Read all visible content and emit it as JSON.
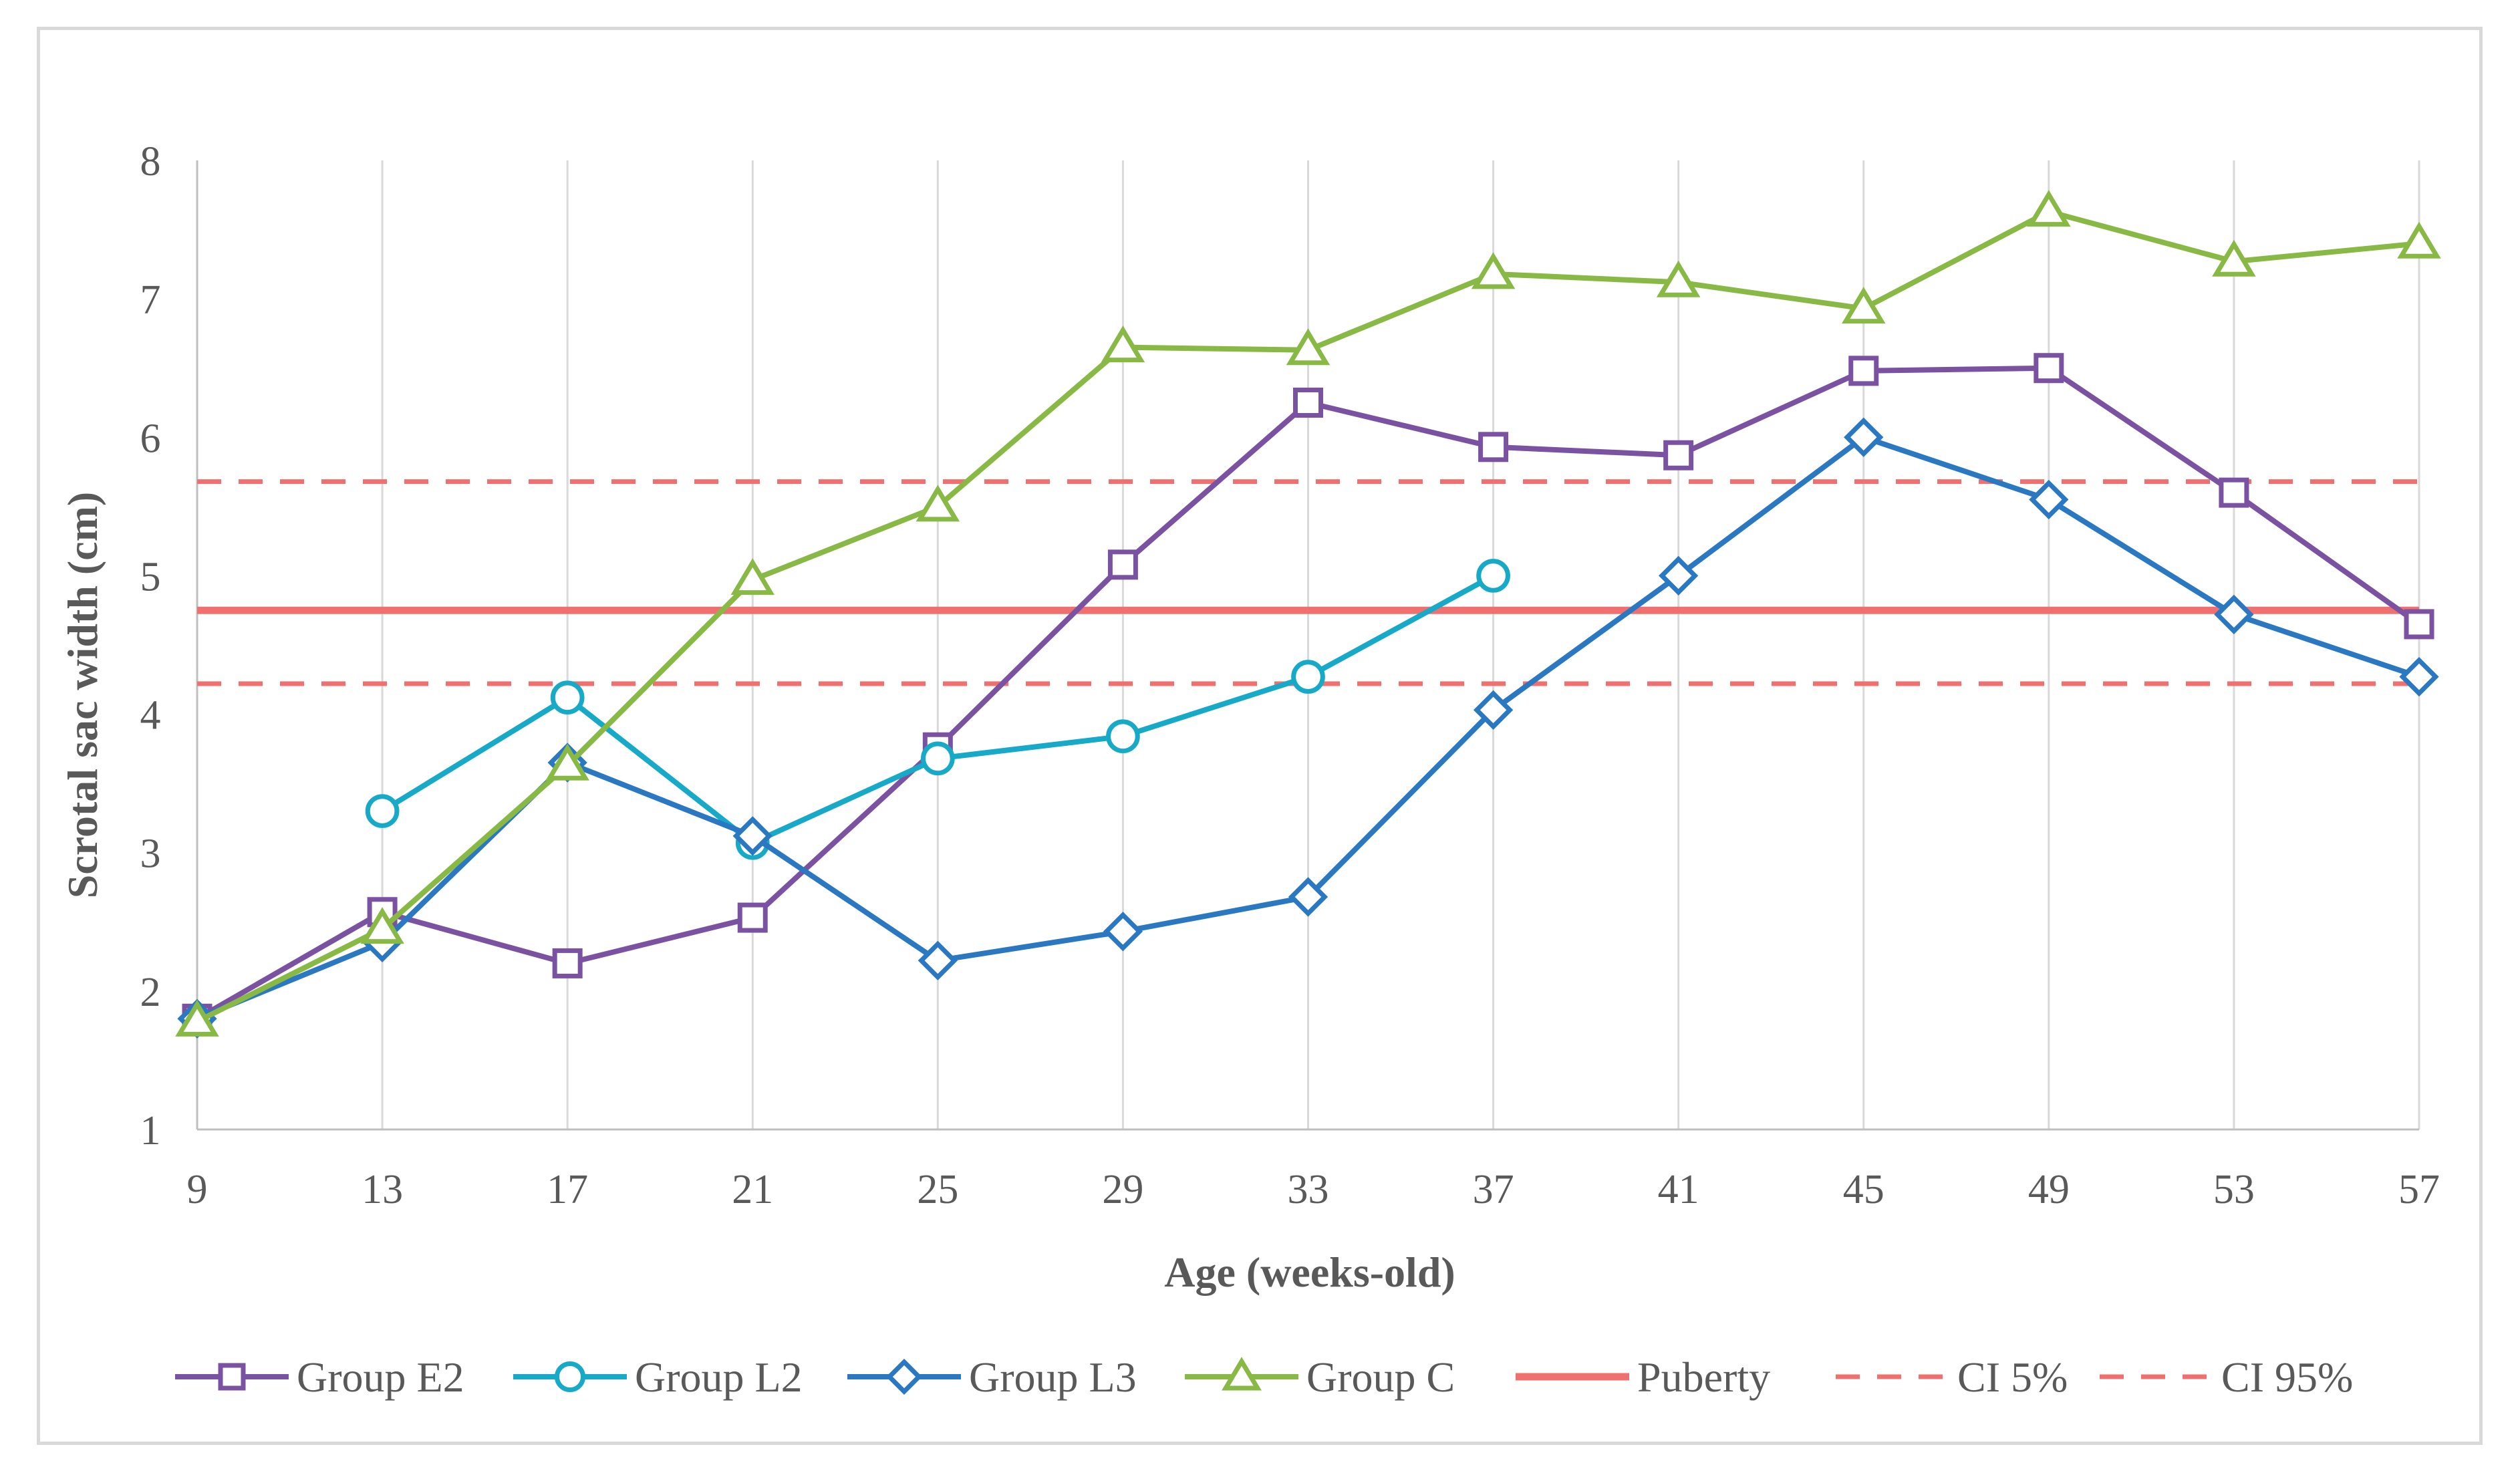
{
  "chart_data": {
    "type": "line",
    "title": "",
    "xlabel": "Age (weeks-old)",
    "ylabel": "Scrotal sac width (cm)",
    "x": [
      9,
      13,
      17,
      21,
      25,
      29,
      33,
      37,
      41,
      45,
      49,
      53,
      57
    ],
    "xlim": [
      9,
      57
    ],
    "ylim": [
      1,
      8
    ],
    "yticks": [
      1,
      2,
      3,
      4,
      5,
      6,
      7,
      8
    ],
    "grid": "vertical",
    "legend_position": "bottom",
    "series": [
      {
        "name": "Group E2",
        "color": "#7b52a1",
        "marker": "square",
        "line_style": "solid",
        "values": [
          1.8,
          2.57,
          2.2,
          2.53,
          3.76,
          5.08,
          6.25,
          5.93,
          5.87,
          6.48,
          6.5,
          5.6,
          4.65
        ]
      },
      {
        "name": "Group L2",
        "color": "#17a9c8",
        "marker": "circle",
        "line_style": "solid",
        "values": [
          null,
          3.3,
          4.12,
          3.07,
          3.68,
          3.84,
          4.27,
          5.0,
          null,
          null,
          null,
          null,
          null
        ]
      },
      {
        "name": "Group L3",
        "color": "#2a78c2",
        "marker": "diamond",
        "line_style": "solid",
        "values": [
          1.8,
          2.35,
          3.65,
          3.12,
          2.22,
          2.43,
          2.68,
          4.03,
          5.0,
          6.0,
          5.55,
          4.72,
          4.27
        ]
      },
      {
        "name": "Group C",
        "color": "#88b945",
        "marker": "triangle",
        "line_style": "solid",
        "values": [
          1.78,
          2.45,
          3.63,
          4.97,
          5.5,
          6.65,
          6.63,
          7.18,
          7.12,
          6.93,
          7.63,
          7.27,
          7.4
        ]
      },
      {
        "name": "Puberty",
        "color": "#f07070",
        "marker": "none",
        "line_style": "solid",
        "constant": 4.75
      },
      {
        "name": "CI 5%",
        "color": "#f07070",
        "marker": "none",
        "line_style": "dashed",
        "constant": 4.22
      },
      {
        "name": "CI 95%",
        "color": "#f07070",
        "marker": "none",
        "line_style": "dashed",
        "constant": 5.68
      }
    ]
  }
}
